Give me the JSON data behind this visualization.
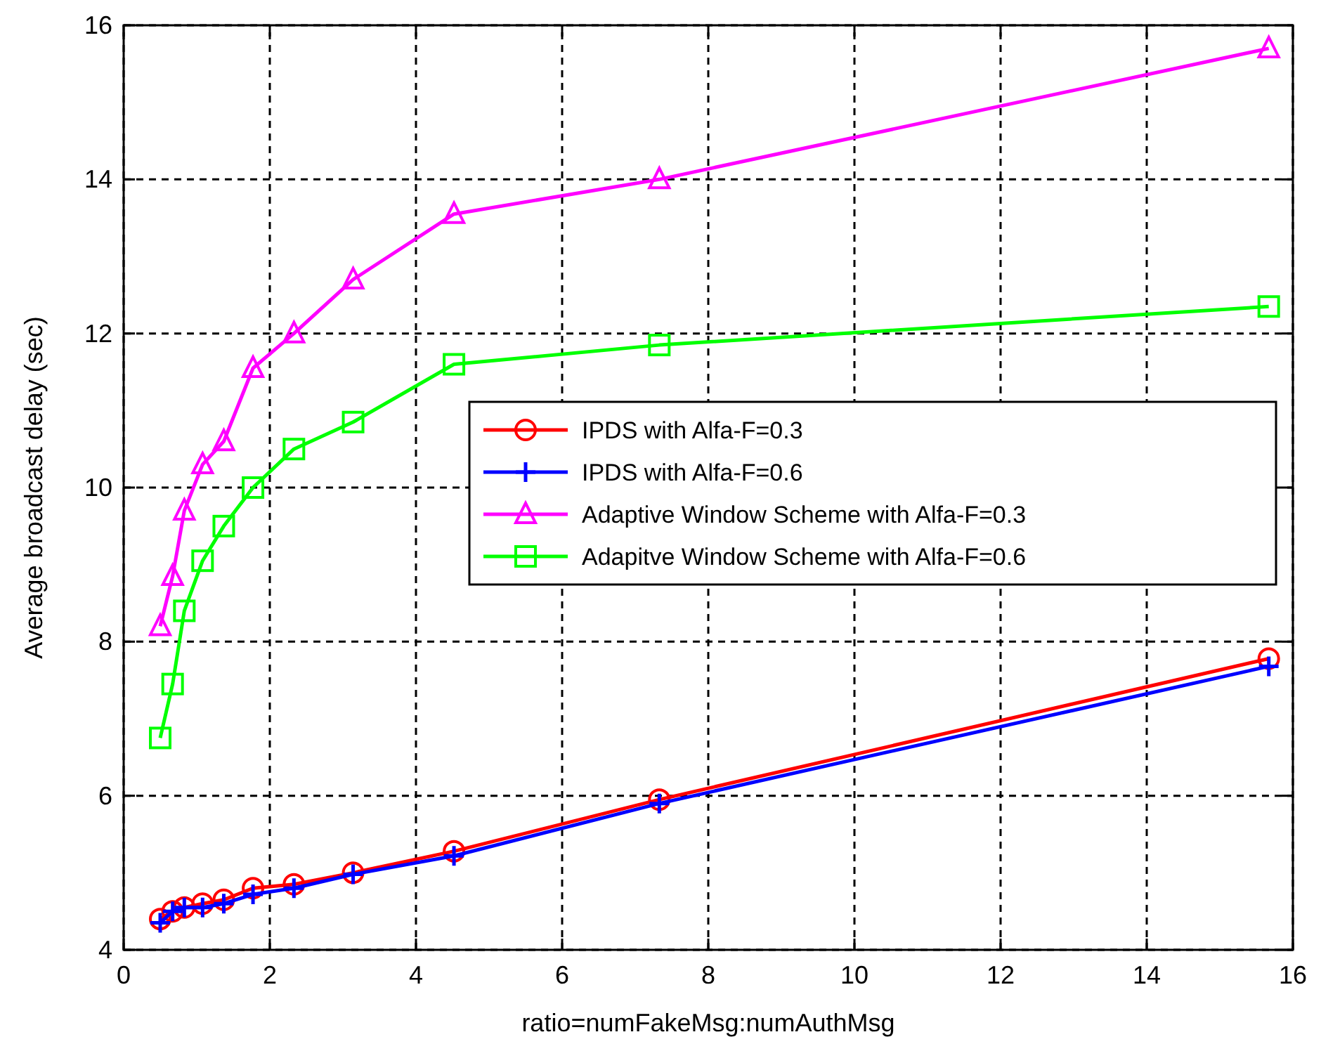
{
  "chart_data": {
    "type": "line",
    "xlabel": "ratio=numFakeMsg:numAuthMsg",
    "ylabel": "Average broadcast delay (sec)",
    "x": [
      0.5,
      0.67,
      0.83,
      1.08,
      1.37,
      1.77,
      2.33,
      3.14,
      4.52,
      7.33,
      15.67
    ],
    "series": [
      {
        "name": "IPDS with Alfa-F=0.3",
        "color": "#ff0000",
        "marker": "circle",
        "values": [
          4.4,
          4.5,
          4.55,
          4.6,
          4.65,
          4.8,
          4.85,
          5.0,
          5.28,
          5.95,
          7.78
        ]
      },
      {
        "name": "IPDS with Alfa-F=0.6",
        "color": "#0000ff",
        "marker": "cross",
        "values": [
          4.35,
          4.5,
          4.55,
          4.55,
          4.6,
          4.72,
          4.8,
          4.98,
          5.22,
          5.9,
          7.68
        ]
      },
      {
        "name": "Adaptive Window Scheme with Alfa-F=0.3",
        "color": "#ff00ff",
        "marker": "triangle",
        "values": [
          8.2,
          8.85,
          9.7,
          10.3,
          10.6,
          11.55,
          12.0,
          12.7,
          13.55,
          14.0,
          15.7
        ]
      },
      {
        "name": "Adapitve Window Scheme with Alfa-F=0.6",
        "color": "#00ff00",
        "marker": "square",
        "values": [
          6.75,
          7.45,
          8.4,
          9.05,
          9.5,
          10.0,
          10.5,
          10.85,
          11.6,
          11.85,
          12.35
        ]
      }
    ],
    "xlim": [
      0,
      16
    ],
    "xticks": [
      0,
      2,
      4,
      6,
      8,
      10,
      12,
      14,
      16
    ],
    "ylim": [
      4,
      16
    ],
    "yticks": [
      4,
      6,
      8,
      10,
      12,
      14,
      16
    ],
    "grid": true,
    "legend": "right",
    "line_style": "solid"
  }
}
